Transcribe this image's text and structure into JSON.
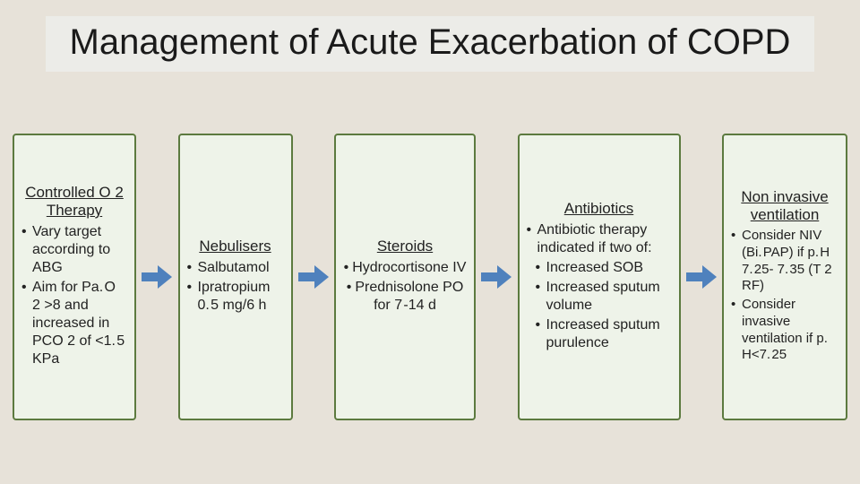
{
  "layout": {
    "background_color": "#e7e2d9",
    "title_background": "#ecece8",
    "title_fontsize": 40,
    "title_color": "#1a1a1a",
    "card_fill": "#eef3e9",
    "card_border": "#5c7a3f",
    "card_border_width": 2,
    "card_text_color": "#222222",
    "arrow_fill": "#4f81bd",
    "arrow_width": 34,
    "arrow_height": 26,
    "card_widths": [
      138,
      128,
      158,
      182,
      140
    ],
    "title_fontsizes": [
      17,
      17,
      17,
      17,
      17
    ],
    "body_fontsizes": [
      16,
      16,
      16,
      16,
      15
    ]
  },
  "title": "Management of Acute Exacerbation of COPD",
  "cards": [
    {
      "title": "Controlled O 2 Therapy",
      "center": false,
      "items": [
        {
          "text": "Vary target according to ABG",
          "sub": false
        },
        {
          "text": "Aim for Pa. O 2 >8 and increased in PCO 2 of <1. 5 KPa",
          "sub": false
        }
      ]
    },
    {
      "title": "Nebulisers",
      "center": false,
      "items": [
        {
          "text": "Salbutamol",
          "sub": false
        },
        {
          "text": "Ipratropium 0. 5 mg/6 h",
          "sub": false
        }
      ]
    },
    {
      "title": "Steroids",
      "center": true,
      "items": [
        {
          "text": "Hydrocortisone IV",
          "sub": false
        },
        {
          "text": "Prednisolone PO for 7 -14 d",
          "sub": false
        }
      ]
    },
    {
      "title": "Antibiotics",
      "center": false,
      "items": [
        {
          "text": "Antibiotic therapy indicated if two of:",
          "sub": false
        },
        {
          "text": "Increased SOB",
          "sub": true
        },
        {
          "text": "Increased sputum volume",
          "sub": true
        },
        {
          "text": "Increased sputum purulence",
          "sub": true
        }
      ]
    },
    {
      "title": "Non invasive ventilation",
      "center": false,
      "items": [
        {
          "text": "Consider NIV (Bi. PAP) if p. H 7. 25- 7. 35 (T 2 RF)",
          "sub": false
        },
        {
          "text": "Consider invasive ventilation if p. H<7. 25",
          "sub": false
        }
      ]
    }
  ]
}
